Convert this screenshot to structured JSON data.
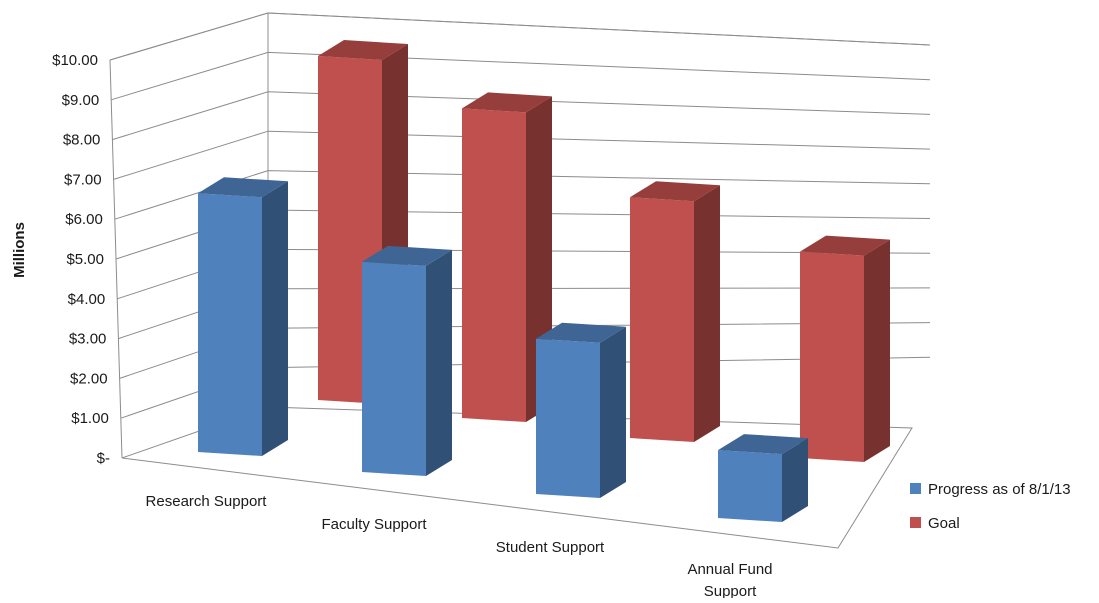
{
  "chart_data": {
    "type": "bar",
    "title": "",
    "xlabel": "",
    "ylabel": "Millions",
    "ylim": [
      0,
      10
    ],
    "yticks": [
      "$-",
      "$1.00",
      "$2.00",
      "$3.00",
      "$4.00",
      "$5.00",
      "$6.00",
      "$7.00",
      "$8.00",
      "$9.00",
      "$10.00"
    ],
    "categories": [
      "Research Support",
      "Faculty Support",
      "Student Support",
      "Annual Fund Support"
    ],
    "series": [
      {
        "name": "Progress as of 8/1/13",
        "color": "#4f81bd",
        "values": [
          8.0,
          6.5,
          4.8,
          2.1
        ]
      },
      {
        "name": "Goal",
        "color": "#c0504d",
        "values": [
          10.0,
          9.0,
          7.0,
          6.0
        ]
      }
    ],
    "grid": true,
    "legend": "right",
    "style": "3d-clustered-column"
  }
}
